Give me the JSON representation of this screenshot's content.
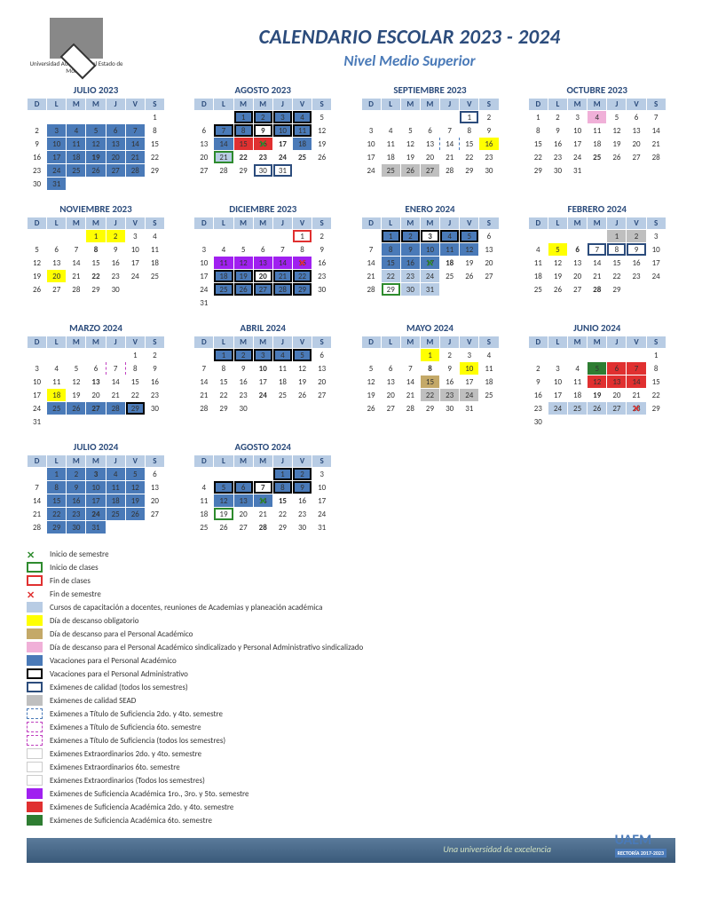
{
  "university": {
    "name": "Universidad Autónoma del Estado de Morelos"
  },
  "title": "CALENDARIO ESCOLAR 2023 - 2024",
  "subtitle": "Nivel Medio Superior",
  "days": [
    "D",
    "L",
    "M",
    "M",
    "J",
    "V",
    "S"
  ],
  "months": [
    {
      "name": "JULIO 2023",
      "start": 6,
      "len": 31,
      "fmt": {
        "3": "v",
        "4": "v",
        "5": "v",
        "6": "v",
        "7": "v",
        "10": "v",
        "11": "v",
        "12": "v",
        "13": "v",
        "14": "v",
        "17": "v",
        "18": "v",
        "19": "v gn",
        "20": "v",
        "21": "v",
        "24": "v",
        "25": "v",
        "26": "v",
        "27": "v",
        "28": "v",
        "31": "v"
      }
    },
    {
      "name": "AGOSTO 2023",
      "start": 2,
      "len": 31,
      "fmt": {
        "1": "v box-b",
        "2": "v box-b",
        "3": "v box-b",
        "4": "v box-b",
        "7": "v box-b",
        "8": "v box-b",
        "9": "gn box-b",
        "10": "v box-b",
        "11": "v box-b",
        "14": "v",
        "15": "rd",
        "16": "rd xg",
        "17": "gn",
        "18": "v",
        "21": "va box-g",
        "22": "gn",
        "23": "gn",
        "24": "gn",
        "25": "gn",
        "30": "box-db",
        "31": "box-db"
      }
    },
    {
      "name": "SEPTIEMBRE 2023",
      "start": 5,
      "len": 30,
      "fmt": {
        "1": "box-db",
        "13": "db",
        "14": "db",
        "15": "db",
        "16": "y",
        "25": "gy",
        "26": "gy",
        "27": "gy"
      }
    },
    {
      "name": "OCTUBRE 2023",
      "start": 0,
      "len": 31,
      "fmt": {
        "4": "pk",
        "25": "gn"
      }
    },
    {
      "name": "NOVIEMBRE 2023",
      "start": 3,
      "len": 30,
      "fmt": {
        "1": "y",
        "2": "y",
        "8": "gn",
        "20": "y",
        "22": "gn"
      }
    },
    {
      "name": "DICIEMBRE 2023",
      "start": 5,
      "len": 31,
      "fmt": {
        "1": "box-r",
        "11": "pu",
        "12": "pu",
        "13": "pu",
        "14": "pu",
        "15": "pu xr",
        "18": "v box-b",
        "19": "v box-b",
        "20": "gn box-b",
        "21": "v box-b",
        "22": "v box-b",
        "25": "v box-b",
        "26": "v box-b",
        "27": "v box-b",
        "28": "v box-b",
        "29": "v box-b"
      }
    },
    {
      "name": "ENERO 2024",
      "start": 1,
      "len": 31,
      "fmt": {
        "1": "v box-b",
        "2": "v box-b",
        "3": "gn box-b",
        "4": "v box-b",
        "5": "v box-b",
        "8": "v",
        "9": "v",
        "10": "v",
        "11": "v",
        "12": "v",
        "15": "v",
        "16": "v",
        "17": "v xg",
        "18": "gn",
        "22": "va",
        "23": "va",
        "24": "va",
        "29": "box-g",
        "30": "va",
        "31": "va"
      }
    },
    {
      "name": "FEBRERO 2024",
      "start": 4,
      "len": 29,
      "fmt": {
        "1": "gy",
        "2": "gy",
        "5": "y",
        "6": "gn",
        "7": "box-db",
        "8": "box-db",
        "9": "box-db",
        "28": "gn"
      }
    },
    {
      "name": "MARZO 2024",
      "start": 5,
      "len": 31,
      "fmt": {
        "6": "dp",
        "7": "dp",
        "8": "dp",
        "13": "gn",
        "18": "y",
        "25": "v",
        "26": "v",
        "27": "gn v",
        "28": "v",
        "29": "v box-b"
      }
    },
    {
      "name": "ABRIL 2024",
      "start": 1,
      "len": 30,
      "fmt": {
        "1": "v box-b",
        "2": "v box-b",
        "3": "v box-b",
        "4": "v box-b",
        "5": "v box-b",
        "10": "gn",
        "24": "gn"
      }
    },
    {
      "name": "MAYO 2024",
      "start": 3,
      "len": 31,
      "fmt": {
        "1": "y",
        "8": "gn",
        "10": "y",
        "15": "br",
        "22": "gy",
        "23": "gy",
        "24": "gy"
      }
    },
    {
      "name": "JUNIO 2024",
      "start": 6,
      "len": 30,
      "fmt": {
        "5": "dg",
        "6": "rd",
        "7": "rd",
        "12": "rd",
        "13": "rd",
        "14": "rd",
        "19": "gn",
        "24": "va",
        "25": "va",
        "26": "va",
        "27": "va",
        "28": "va xr"
      }
    },
    {
      "name": "JULIO 2024",
      "start": 1,
      "len": 31,
      "fmt": {
        "1": "v",
        "2": "v",
        "3": "gn v",
        "4": "v",
        "5": "v",
        "8": "v",
        "9": "v",
        "10": "v",
        "11": "v",
        "12": "v",
        "15": "v",
        "16": "v",
        "17": "v",
        "18": "v",
        "19": "v",
        "22": "v",
        "23": "v",
        "24": "gn v",
        "25": "v",
        "26": "v",
        "29": "v",
        "30": "v",
        "31": "v"
      }
    },
    {
      "name": "AGOSTO 2024",
      "start": 4,
      "len": 31,
      "fmt": {
        "1": "v box-b",
        "2": "v box-b",
        "5": "v box-b",
        "6": "v box-b",
        "7": "gn box-b",
        "8": "v box-b",
        "9": "v box-b",
        "12": "v",
        "13": "v",
        "14": "v xg",
        "15": "gn",
        "19": "box-g",
        "28": "gn"
      }
    }
  ],
  "legend": [
    {
      "sw": "xg",
      "text": "Inicio de semestre"
    },
    {
      "sw": "box-g",
      "text": "Inicio de clases"
    },
    {
      "sw": "box-r",
      "text": "Fin de clases"
    },
    {
      "sw": "xr",
      "text": "Fin de semestre"
    },
    {
      "sw": "va",
      "text": "Cursos de capacitación a docentes, reuniones de Academias y planeación académica"
    },
    {
      "sw": "y",
      "text": "Día de descanso obligatorio"
    },
    {
      "sw": "br",
      "text": "Día de descanso para el Personal Académico"
    },
    {
      "sw": "pk",
      "text": "Día de descanso para el Personal Académico sindicalizado y Personal Administrativo sindicalizado"
    },
    {
      "sw": "v",
      "text": "Vacaciones para el Personal Académico"
    },
    {
      "sw": "box-b",
      "text": "Vacaciones para el Personal Administrativo"
    },
    {
      "sw": "box-db",
      "text": "Exámenes de calidad (todos los semestres)"
    },
    {
      "sw": "gy",
      "text": "Exámenes de calidad SEAD"
    },
    {
      "sw": "db",
      "text": "Exámenes a Título de Suficiencia 2do. y 4to. semestre"
    },
    {
      "sw": "dp",
      "text": "Exámenes a Título de Suficiencia 6to. semestre"
    },
    {
      "sw": "dp",
      "text": "Exámenes a Título de Suficiencia  (todos los semestres)"
    },
    {
      "sw": "",
      "text": "Exámenes Extraordinarios  2do. y 4to. semestre"
    },
    {
      "sw": "",
      "text": "Exámenes Extraordinarios  6to. semestre"
    },
    {
      "sw": "",
      "text": "Exámenes Extraordinarios  (Todos los semestres)"
    },
    {
      "sw": "pu",
      "text": "Exámenes de Suficiencia Académica 1ro., 3ro. y 5to. semestre"
    },
    {
      "sw": "rd",
      "text": "Exámenes de Suficiencia Académica 2do. y 4to. semestre"
    },
    {
      "sw": "dg",
      "text": "Exámenes de Suficiencia Académica 6to. semestre"
    }
  ],
  "footer": {
    "motto": "Una universidad de excelencia",
    "badge": "UAEM",
    "badge_sub": "RECTORÍA 2017-2023"
  }
}
